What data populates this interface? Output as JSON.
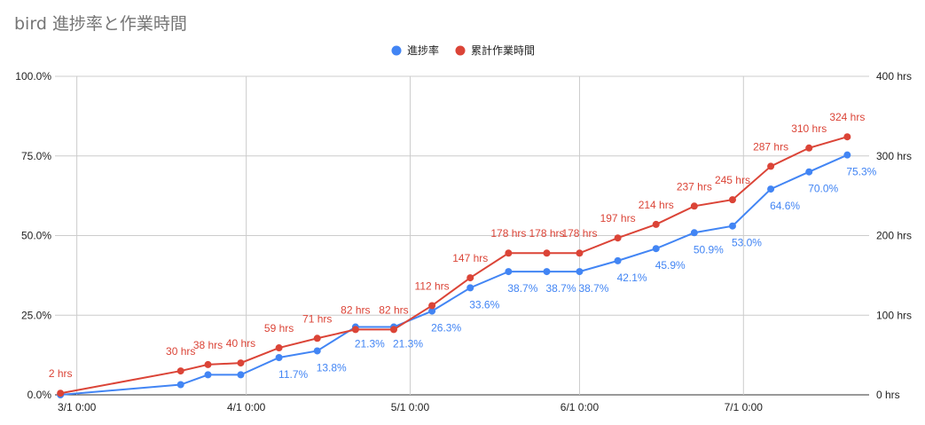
{
  "chart_data": {
    "type": "line",
    "title": "bird 進捗率と作業時間",
    "x_ticks": [
      "3/1 0:00",
      "4/1 0:00",
      "5/1 0:00",
      "6/1 0:00",
      "7/1 0:00"
    ],
    "left_axis": {
      "ticks": [
        "0.0%",
        "25.0%",
        "50.0%",
        "75.0%",
        "100.0%"
      ],
      "ylim": [
        0,
        100
      ]
    },
    "right_axis": {
      "ticks": [
        "0 hrs",
        "100 hrs",
        "200 hrs",
        "300 hrs",
        "400 hrs"
      ],
      "ylim": [
        0,
        400
      ]
    },
    "grid": true,
    "legend_position": "top-center",
    "series": [
      {
        "name": "進捗率",
        "axis": "left",
        "color": "#4285f4",
        "x": [
          "2020-02-27",
          "2020-03-20",
          "2020-03-25",
          "2020-03-31",
          "2020-04-07",
          "2020-04-14",
          "2020-04-21",
          "2020-04-28",
          "2020-05-05",
          "2020-05-12",
          "2020-05-19",
          "2020-05-26",
          "2020-06-01",
          "2020-06-08",
          "2020-06-15",
          "2020-06-22",
          "2020-06-29",
          "2020-07-06",
          "2020-07-13",
          "2020-07-20"
        ],
        "values": [
          0,
          3.2,
          6.3,
          6.3,
          11.7,
          13.8,
          21.3,
          21.3,
          26.3,
          33.6,
          38.7,
          38.7,
          38.7,
          42.1,
          45.9,
          50.9,
          53.0,
          64.6,
          70.0,
          75.3
        ],
        "labels": [
          "",
          "",
          "",
          "",
          "11.7%",
          "13.8%",
          "21.3%",
          "21.3%",
          "26.3%",
          "33.6%",
          "38.7%",
          "38.7%",
          "38.7%",
          "42.1%",
          "45.9%",
          "50.9%",
          "53.0%",
          "64.6%",
          "70.0%",
          "75.3%"
        ]
      },
      {
        "name": "累計作業時間",
        "axis": "right",
        "color": "#db4437",
        "x": [
          "2020-02-27",
          "2020-03-20",
          "2020-03-25",
          "2020-03-31",
          "2020-04-07",
          "2020-04-14",
          "2020-04-21",
          "2020-04-28",
          "2020-05-05",
          "2020-05-12",
          "2020-05-19",
          "2020-05-26",
          "2020-06-01",
          "2020-06-08",
          "2020-06-15",
          "2020-06-22",
          "2020-06-29",
          "2020-07-06",
          "2020-07-13",
          "2020-07-20"
        ],
        "values": [
          2,
          30,
          38,
          40,
          59,
          71,
          82,
          82,
          112,
          147,
          178,
          178,
          178,
          197,
          214,
          237,
          245,
          287,
          310,
          324
        ],
        "labels": [
          "2 hrs",
          "30 hrs",
          "38 hrs",
          "40 hrs",
          "59 hrs",
          "71 hrs",
          "82 hrs",
          "82 hrs",
          "112 hrs",
          "147 hrs",
          "178 hrs",
          "178 hrs",
          "178 hrs",
          "197 hrs",
          "214 hrs",
          "237 hrs",
          "245 hrs",
          "287 hrs",
          "310 hrs",
          "324 hrs"
        ]
      }
    ]
  }
}
